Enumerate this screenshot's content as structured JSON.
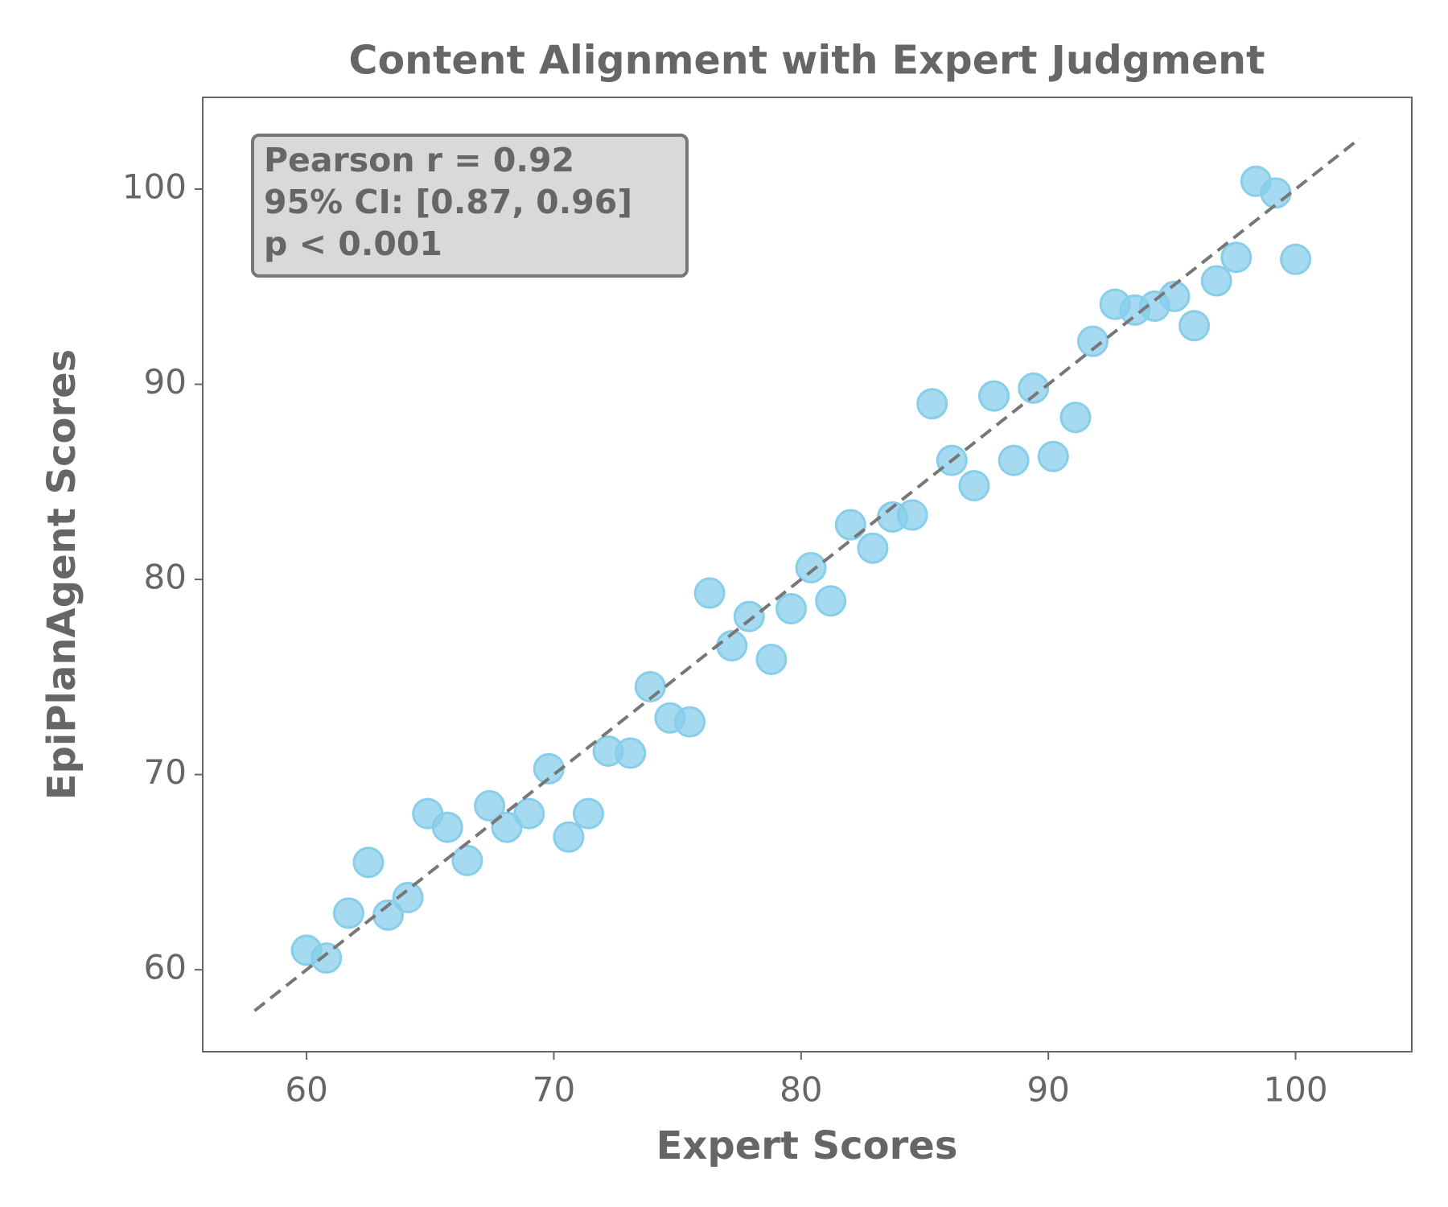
{
  "chart_data": {
    "type": "scatter",
    "title": "Content Alignment with Expert Judgment",
    "x_label": "Expert Scores",
    "y_label": "EpiPlanAgent Scores",
    "annotation": [
      "Pearson r = 0.92",
      "95% CI: [0.87, 0.96]",
      "p < 0.001"
    ],
    "color": "#87ceeb",
    "xlim": [
      55.8,
      104.7
    ],
    "ylim": [
      55.8,
      104.7
    ],
    "xticks": [
      60,
      70,
      80,
      90,
      100
    ],
    "yticks": [
      60,
      70,
      80,
      90,
      100
    ],
    "reference_line": {
      "color": "#777777",
      "x": [
        57.9,
        102.6
      ],
      "y": [
        57.9,
        102.6
      ]
    },
    "x": [
      60.0,
      60.8,
      61.7,
      62.5,
      63.3,
      64.1,
      64.9,
      65.7,
      66.5,
      67.4,
      68.1,
      69.0,
      69.8,
      70.6,
      71.4,
      72.2,
      73.1,
      73.9,
      74.7,
      75.5,
      76.3,
      77.2,
      77.9,
      78.8,
      79.6,
      80.4,
      81.2,
      82.0,
      82.9,
      83.7,
      84.5,
      85.3,
      86.1,
      87.0,
      87.8,
      88.6,
      89.4,
      90.2,
      91.1,
      91.8,
      92.7,
      93.5,
      94.3,
      95.1,
      95.9,
      96.8,
      97.6,
      98.4,
      99.2,
      100.0
    ],
    "values": [
      61.0,
      60.6,
      62.9,
      65.5,
      62.8,
      63.7,
      68.0,
      67.3,
      65.6,
      68.4,
      67.3,
      68.0,
      70.3,
      66.8,
      68.0,
      71.2,
      71.1,
      74.5,
      72.9,
      72.7,
      79.3,
      76.6,
      78.1,
      75.9,
      78.5,
      80.6,
      78.9,
      82.8,
      81.6,
      83.2,
      83.3,
      89.0,
      86.1,
      84.8,
      89.4,
      86.1,
      89.8,
      86.3,
      88.3,
      92.2,
      94.1,
      93.8,
      94.0,
      94.5,
      93.0,
      95.3,
      96.5,
      100.4,
      99.8,
      96.4
    ]
  }
}
